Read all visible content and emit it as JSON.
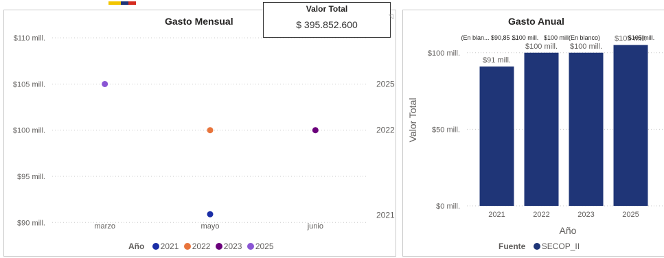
{
  "kpi": {
    "label": "Valor Total",
    "value": "$ 395.852.600"
  },
  "colors": {
    "bar": "#1f3577",
    "grid": "#c8c8c8",
    "text": "#605e5c",
    "title": "#252423"
  },
  "legend_left": {
    "title": "Año",
    "items": [
      {
        "label": "2021",
        "color": "#1a2ea6"
      },
      {
        "label": "2022",
        "color": "#e8743b"
      },
      {
        "label": "2023",
        "color": "#6b007b"
      },
      {
        "label": "2025",
        "color": "#8a55d4"
      }
    ]
  },
  "legend_right": {
    "title": "Fuente",
    "items": [
      {
        "label": "SECOP_II",
        "color": "#1f3577"
      }
    ]
  },
  "chart_data": [
    {
      "type": "scatter",
      "title": "Gasto Mensual",
      "xlabel": "",
      "ylabel": "",
      "categories": [
        "marzo",
        "mayo",
        "junio"
      ],
      "ylim": [
        89.8,
        111.5
      ],
      "yticks": [
        90,
        95,
        100,
        105,
        110
      ],
      "ytick_labels": [
        "$90 mill.",
        "$95 mill.",
        "$100 mill.",
        "$105 mill.",
        "$110 mill."
      ],
      "grid": true,
      "legend": "bottom",
      "series": [
        {
          "name": "2021",
          "color": "#1a2ea6",
          "points": [
            {
              "x": "mayo",
              "y": 90.9
            }
          ],
          "end_label": "2021",
          "end_label_y": 90.8
        },
        {
          "name": "2022",
          "color": "#e8743b",
          "points": [
            {
              "x": "mayo",
              "y": 100
            }
          ],
          "end_label": "2022",
          "end_label_y": 100
        },
        {
          "name": "2023",
          "color": "#6b007b",
          "points": [
            {
              "x": "junio",
              "y": 100
            }
          ]
        },
        {
          "name": "2025",
          "color": "#8a55d4",
          "points": [
            {
              "x": "marzo",
              "y": 105
            }
          ],
          "end_label": "2025",
          "end_label_y": 105
        }
      ]
    },
    {
      "type": "bar",
      "title": "Gasto Anual",
      "xlabel": "Año",
      "ylabel": "Valor Total",
      "categories": [
        "2021",
        "2022",
        "2023",
        "2025"
      ],
      "values": [
        91,
        100,
        100,
        105
      ],
      "data_labels": [
        "$91 mill.",
        "$100 mill.",
        "$100 mill.",
        "$105 mill."
      ],
      "top_labels": [
        "(En blan... $90,85 ...",
        "$100 mill.",
        "$100 mill(En blanco)",
        "$105 mill."
      ],
      "ylim": [
        0,
        112
      ],
      "yticks": [
        0,
        50,
        100
      ],
      "ytick_labels": [
        "$0 mill.",
        "$50 mill.",
        "$100 mill."
      ],
      "grid": true,
      "legend": "bottom"
    }
  ]
}
